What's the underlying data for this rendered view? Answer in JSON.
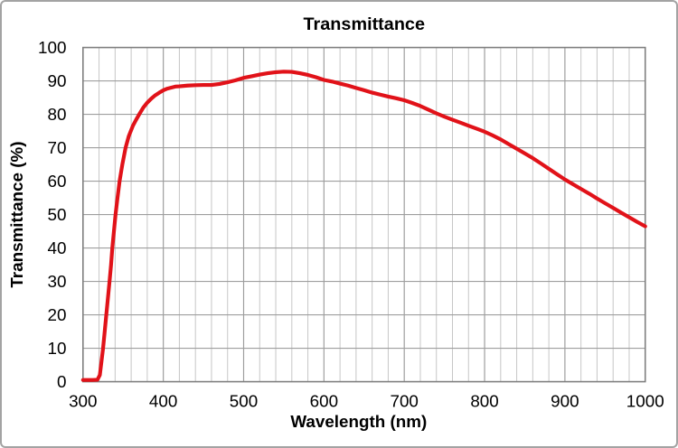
{
  "chart_data": {
    "type": "line",
    "title": "Transmittance",
    "xlabel": "Wavelength (nm)",
    "ylabel": "Transmittance (%)",
    "xlim": [
      300,
      1000
    ],
    "ylim": [
      0,
      100
    ],
    "x_major_ticks": [
      300,
      400,
      500,
      600,
      700,
      800,
      900,
      1000
    ],
    "y_major_ticks": [
      0,
      10,
      20,
      30,
      40,
      50,
      60,
      70,
      80,
      90,
      100
    ],
    "x_minor_step": 20,
    "grid": "major horizontal + major/minor vertical",
    "legend_position": "none",
    "series": [
      {
        "name": "transmittance",
        "color": "#e11219",
        "x": [
          300,
          312,
          318,
          321,
          323,
          325,
          327,
          329,
          331,
          333,
          335,
          336.5,
          338.5,
          340.5,
          343,
          345.5,
          349,
          353,
          357,
          362,
          366,
          370,
          375,
          380,
          385,
          390,
          395,
          400,
          405,
          410,
          415,
          420,
          430,
          440,
          450,
          460,
          470,
          480,
          490,
          500,
          510,
          520,
          530,
          540,
          550,
          560,
          570,
          580,
          590,
          600,
          610,
          620,
          630,
          640,
          650,
          660,
          670,
          680,
          690,
          700,
          710,
          720,
          730,
          740,
          750,
          760,
          770,
          780,
          790,
          800,
          810,
          820,
          830,
          840,
          850,
          860,
          870,
          880,
          890,
          900,
          910,
          920,
          930,
          940,
          950,
          960,
          970,
          980,
          990,
          1000
        ],
        "y": [
          0.5,
          0.5,
          0.6,
          2,
          6,
          10,
          15,
          20,
          25,
          30,
          35,
          40,
          45,
          50,
          55,
          60,
          65,
          70,
          73.5,
          76.5,
          78.3,
          80,
          82,
          83.5,
          84.7,
          85.7,
          86.5,
          87.2,
          87.7,
          88,
          88.3,
          88.4,
          88.6,
          88.7,
          88.8,
          88.8,
          89.1,
          89.6,
          90.2,
          90.9,
          91.4,
          91.9,
          92.3,
          92.6,
          92.8,
          92.7,
          92.3,
          91.8,
          91.1,
          90.3,
          89.8,
          89.2,
          88.6,
          87.9,
          87.2,
          86.5,
          85.9,
          85.3,
          84.8,
          84.2,
          83.4,
          82.5,
          81.4,
          80.3,
          79.3,
          78.4,
          77.5,
          76.6,
          75.7,
          74.8,
          73.7,
          72.5,
          71.1,
          69.7,
          68.3,
          66.9,
          65.3,
          63.7,
          62.1,
          60.5,
          59.1,
          57.7,
          56.3,
          54.8,
          53.4,
          52,
          50.6,
          49.2,
          47.8,
          46.5
        ]
      }
    ],
    "colors": {
      "line": "#e11219",
      "grid_minor": "#c6c6c6",
      "grid_major": "#9e9e9e",
      "plot_border": "#7f7f7f",
      "frame_border": "#a3a3a3",
      "text": "#000000"
    }
  }
}
